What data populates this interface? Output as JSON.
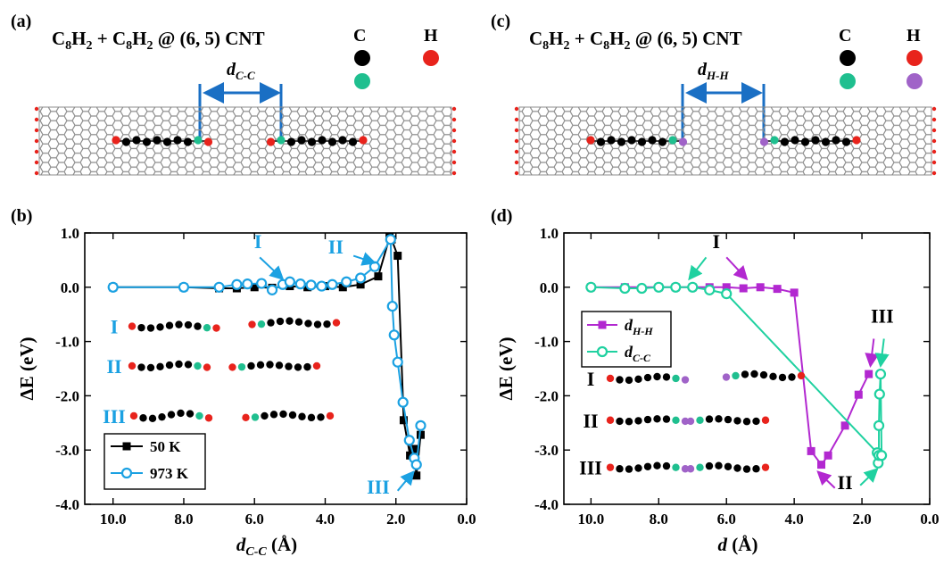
{
  "panels": {
    "a": {
      "label": "(a)",
      "formula": [
        "C",
        "8",
        "H",
        "2",
        " + C",
        "8",
        "H",
        "2",
        " @ (6, 5) CNT"
      ],
      "distance_label": [
        "d",
        "C-C"
      ],
      "legend_headers": [
        "C",
        "H"
      ],
      "atom_colors": {
        "C": "#000000",
        "C_end": "#1fbf8f",
        "H": "#e8231c"
      }
    },
    "c": {
      "label": "(c)",
      "formula": [
        "C",
        "8",
        "H",
        "2",
        " + C",
        "8",
        "H",
        "2",
        " @ (6, 5) CNT"
      ],
      "distance_label": [
        "d",
        "H-H"
      ],
      "legend_headers": [
        "C",
        "H"
      ],
      "atom_colors": {
        "C": "#000000",
        "C_end": "#1fbf8f",
        "H": "#e8231c",
        "H_end": "#a063c8"
      }
    },
    "b": {
      "label": "(b)"
    },
    "d": {
      "label": "(d)"
    }
  },
  "colors": {
    "black_series": "#000000",
    "blue_series": "#1ba1e2",
    "purple_series": "#b228d0",
    "green_series": "#1fd1a0",
    "tube": "#8c8c8c",
    "tube_end_h": "#e8231c",
    "dimension_bar": "#1a6fc4"
  },
  "chart_data": [
    {
      "type": "line",
      "panel": "b",
      "xlabel": [
        "d",
        "C-C",
        " (Å)"
      ],
      "ylabel": "ΔE (eV)",
      "xlim": [
        10.8,
        0.0
      ],
      "ylim": [
        -4.0,
        1.0
      ],
      "xticks": [
        "10.0",
        "8.0",
        "6.0",
        "4.0",
        "2.0",
        "0.0"
      ],
      "xtick_values": [
        10,
        8,
        6,
        4,
        2,
        0
      ],
      "yticks": [
        "1.0",
        "0.0",
        "-1.0",
        "-2.0",
        "-3.0",
        "-4.0"
      ],
      "ytick_values": [
        1,
        0,
        -1,
        -2,
        -3,
        -4
      ],
      "legend": {
        "position": "bottom-left",
        "entries": [
          "50 K",
          "973 K"
        ]
      },
      "series": [
        {
          "name": "50 K",
          "marker": "square",
          "filled": true,
          "color": "#000000",
          "x": [
            10.0,
            8.0,
            7.0,
            6.5,
            6.0,
            5.5,
            5.0,
            4.5,
            4.0,
            3.5,
            3.0,
            2.5,
            2.18,
            2.12,
            1.95,
            1.78,
            1.6,
            1.5,
            1.42,
            1.3
          ],
          "y": [
            0.0,
            0.0,
            -0.02,
            -0.02,
            0.0,
            -0.01,
            0.02,
            0.0,
            0.02,
            0.0,
            0.05,
            0.2,
            0.92,
            0.88,
            0.58,
            -2.45,
            -3.1,
            -2.98,
            -3.47,
            -2.72
          ]
        },
        {
          "name": "973 K",
          "marker": "circle",
          "filled": false,
          "color": "#1ba1e2",
          "x": [
            10.0,
            8.0,
            7.0,
            6.5,
            6.2,
            5.8,
            5.5,
            5.2,
            5.0,
            4.7,
            4.4,
            4.1,
            3.8,
            3.4,
            3.0,
            2.6,
            2.15,
            2.1,
            2.05,
            1.95,
            1.8,
            1.62,
            1.48,
            1.42,
            1.3
          ],
          "y": [
            0.0,
            0.0,
            0.0,
            0.05,
            0.06,
            0.07,
            -0.05,
            0.05,
            0.1,
            0.06,
            0.04,
            0.02,
            0.05,
            0.1,
            0.17,
            0.38,
            0.88,
            -0.35,
            -0.88,
            -1.38,
            -2.12,
            -2.82,
            -3.15,
            -3.27,
            -2.55
          ]
        }
      ],
      "annotations": [
        {
          "text": "I",
          "x": 5.9,
          "y": 0.72,
          "color": "#1ba1e2"
        },
        {
          "text": "II",
          "x": 3.7,
          "y": 0.62,
          "color": "#1ba1e2"
        },
        {
          "text": "III",
          "x": 2.5,
          "y": -3.8,
          "color": "#1ba1e2"
        }
      ],
      "structure_labels": [
        "I",
        "II",
        "III"
      ]
    },
    {
      "type": "line",
      "panel": "d",
      "xlabel": [
        "d",
        "",
        " (Å)"
      ],
      "ylabel": "ΔE (eV)",
      "xlim": [
        10.8,
        0.0
      ],
      "ylim": [
        -4.0,
        1.0
      ],
      "xticks": [
        "10.0",
        "8.0",
        "6.0",
        "4.0",
        "2.0",
        "0.0"
      ],
      "xtick_values": [
        10,
        8,
        6,
        4,
        2,
        0
      ],
      "yticks": [
        "1.0",
        "0.0",
        "-1.0",
        "-2.0",
        "-3.0",
        "-4.0"
      ],
      "ytick_values": [
        1,
        0,
        -1,
        -2,
        -3,
        -4
      ],
      "legend": {
        "position": "middle-left",
        "entries": [
          [
            "d",
            "H-H"
          ],
          [
            "d",
            "C-C"
          ]
        ]
      },
      "series": [
        {
          "name": "d_H-H",
          "marker": "square",
          "filled": true,
          "color": "#b228d0",
          "x": [
            10.0,
            9.0,
            8.0,
            7.5,
            7.0,
            6.5,
            6.0,
            5.5,
            5.0,
            4.5,
            4.0,
            3.5,
            3.2,
            3.0,
            2.5,
            2.1,
            1.8
          ],
          "y": [
            0.0,
            0.0,
            0.0,
            0.0,
            0.0,
            0.0,
            0.0,
            -0.02,
            0.0,
            -0.03,
            -0.1,
            -3.02,
            -3.27,
            -3.1,
            -2.55,
            -1.98,
            -1.6
          ]
        },
        {
          "name": "d_C-C",
          "marker": "circle",
          "filled": false,
          "color": "#1fd1a0",
          "x": [
            10.0,
            9.0,
            8.5,
            8.0,
            7.5,
            7.0,
            6.5,
            6.0,
            1.55,
            1.52,
            1.5,
            1.5,
            1.48,
            1.45,
            1.42
          ],
          "y": [
            0.0,
            -0.02,
            -0.02,
            0.0,
            0.0,
            0.0,
            -0.05,
            -0.12,
            -3.05,
            -3.24,
            -3.1,
            -2.55,
            -1.97,
            -1.6,
            -3.1
          ]
        }
      ],
      "annotations": [
        {
          "text": "I",
          "x": 6.3,
          "y": 0.72,
          "color": "#000000"
        },
        {
          "text": "II",
          "x": 2.5,
          "y": -3.72,
          "color": "#000000"
        },
        {
          "text": "III",
          "x": 1.4,
          "y": -0.65,
          "color": "#000000"
        }
      ],
      "structure_labels": [
        "I",
        "II",
        "III"
      ]
    }
  ]
}
